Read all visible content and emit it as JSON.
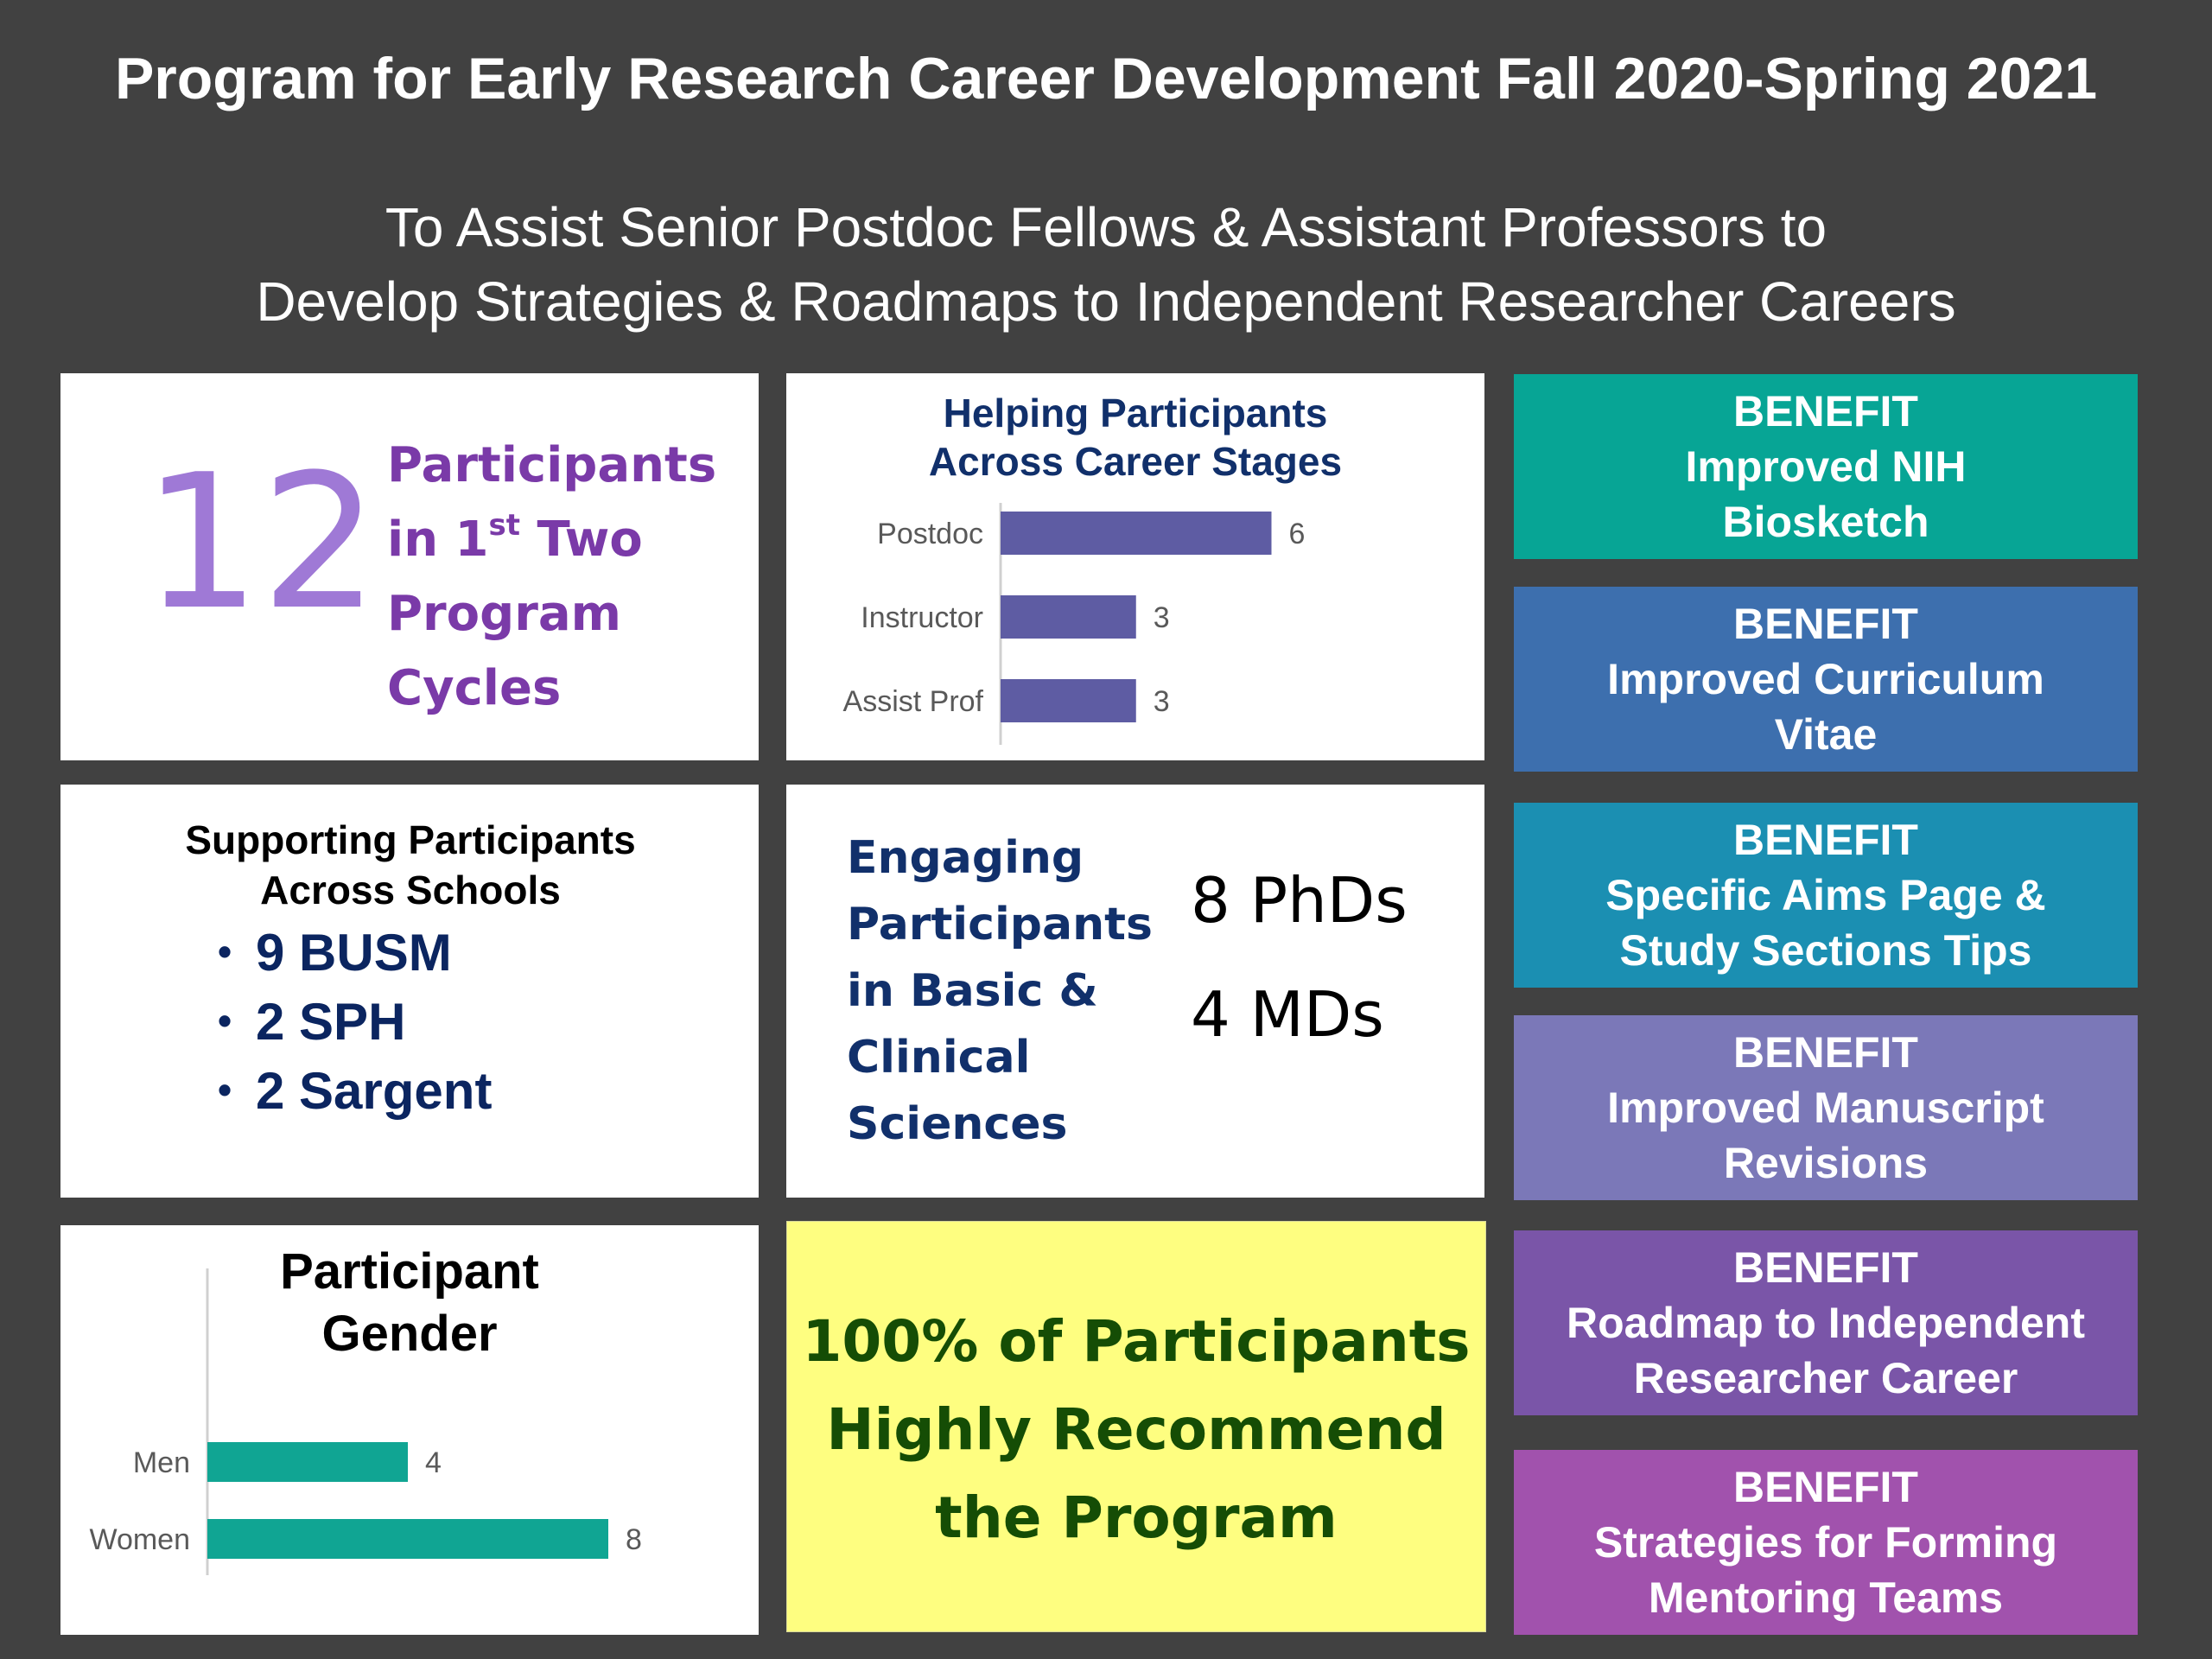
{
  "title": "Program for Early Research Career Development Fall 2020-Spring 2021",
  "subtitle_line1": "To Assist Senior Postdoc Fellows & Assistant Professors to",
  "subtitle_line2": "Develop Strategies & Roadmaps to Independent Researcher Careers",
  "participants": {
    "number": "12",
    "line1": "Participants",
    "line2_pre": "in 1",
    "line2_sup": "st",
    "line2_post": " Two",
    "line3": "Program",
    "line4": "Cycles"
  },
  "schools": {
    "title_line1": "Supporting Participants",
    "title_line2": "Across Schools",
    "bullet": "•",
    "items": [
      "9 BUSM",
      "2 SPH",
      "2 Sargent"
    ]
  },
  "engaging": {
    "lines": [
      "Engaging",
      "Participants",
      "in Basic &",
      "Clinical",
      "Sciences"
    ],
    "phds": "8 PhDs",
    "mds": "4 MDs"
  },
  "recommend": {
    "line1": "100% of Participants",
    "line2": "Highly Recommend",
    "line3": "the Program"
  },
  "benefits": [
    {
      "label": "BENEFIT",
      "line1": "Improved NIH",
      "line2": "Biosketch",
      "color": "#07a595"
    },
    {
      "label": "BENEFIT",
      "line1": "Improved Curriculum",
      "line2": "Vitae",
      "color": "#3d6fae"
    },
    {
      "label": "BENEFIT",
      "line1": "Specific Aims Page &",
      "line2": "Study Sections Tips",
      "color": "#1b8fb2"
    },
    {
      "label": "BENEFIT",
      "line1": "Improved Manuscript",
      "line2": "Revisions",
      "color": "#7b78b8"
    },
    {
      "label": "BENEFIT",
      "line1": "Roadmap to Independent",
      "line2": "Researcher Career",
      "color": "#7a55a8"
    },
    {
      "label": "BENEFIT",
      "line1": "Strategies for Forming",
      "line2": "Mentoring Teams",
      "color": "#a152ad"
    }
  ],
  "chart_data": [
    {
      "type": "bar",
      "orientation": "horizontal",
      "title": "Helping Participants Across Career Stages",
      "title_line1": "Helping Participants",
      "title_line2": "Across Career Stages",
      "categories": [
        "Postdoc",
        "Instructor",
        "Assist Prof"
      ],
      "values": [
        6,
        3,
        3
      ],
      "xlim": [
        0,
        8
      ],
      "grid": false,
      "color": "#5e5ca3"
    },
    {
      "type": "bar",
      "orientation": "horizontal",
      "title": "Participant Gender",
      "title_line1": "Participant",
      "title_line2": "Gender",
      "categories": [
        "Men",
        "Women"
      ],
      "values": [
        4,
        8
      ],
      "xlim": [
        0,
        9
      ],
      "grid": false,
      "color": "#10a593"
    }
  ]
}
